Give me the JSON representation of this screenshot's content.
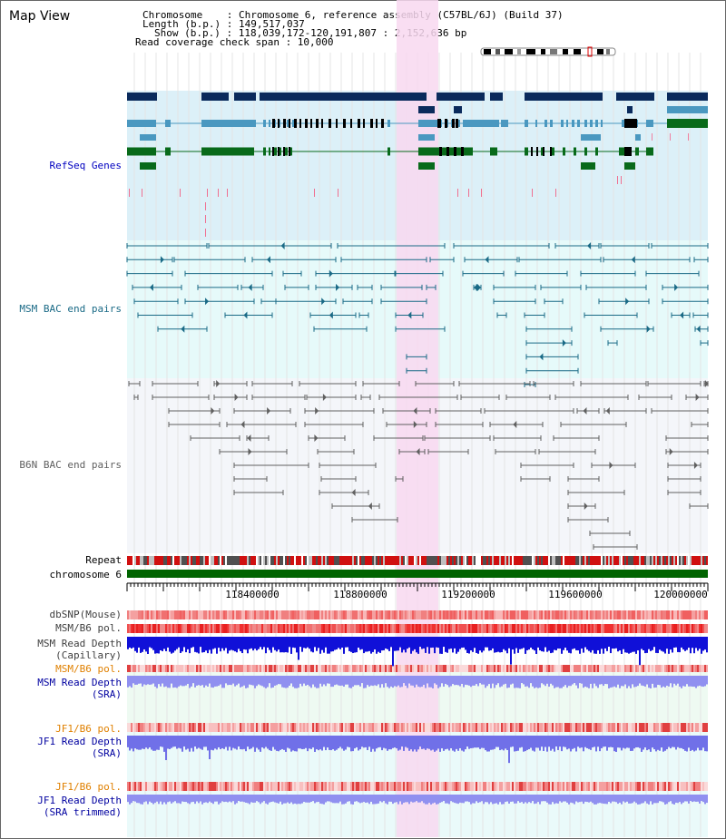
{
  "page_title": "Map View",
  "header": {
    "chromosome_line": "Chromosome    : Chromosome 6, reference assembly (C57BL/6J) (Build 37)",
    "length_line": "Length (b.p.) : 149,517,037",
    "show_line": "Show (b.p.) : 118,039,172-120,191,807 : 2,152,636 bp",
    "coverage_line": "Read coverage check span : 10,000"
  },
  "tracks": {
    "refseq": "RefSeq Genes",
    "msm_bac": "MSM BAC end pairs",
    "b6n_bac": "B6N BAC end pairs",
    "repeat": "Repeat",
    "chromosome": "chromosome 6",
    "dbsnp": "dbSNP(Mouse)",
    "msm_b6_pol_1": "MSM/B6 pol.",
    "msm_depth_cap_1": "MSM Read Depth",
    "msm_depth_cap_2": "(Capillary)",
    "msm_b6_pol_2": "MSM/B6 pol.",
    "msm_depth_sra_1": "MSM Read Depth",
    "msm_depth_sra_2": "(SRA)",
    "jf1_b6_pol_1": "JF1/B6 pol.",
    "jf1_depth_sra_1": "JF1 Read Depth",
    "jf1_depth_sra_2": "(SRA)",
    "jf1_b6_pol_2": "JF1/B6 pol.",
    "jf1_depth_trim_1": "JF1 Read Depth",
    "jf1_depth_trim_2": "(SRA trimmed)"
  },
  "axis_ticks": [
    "118400000",
    "118800000",
    "119200000",
    "119600000",
    "120000000"
  ],
  "colors": {
    "refseq_bg": "#dcf0f8",
    "msm_bg": "#e6fafa",
    "b6n_bg": "#f4f6fa",
    "highlight": "#f8d8f0",
    "refseq_dark": "#0a2a5c",
    "refseq_mid": "#4a98c0",
    "refseq_green": "#086a1a",
    "msm_line": "#1a6a86",
    "b6n_line": "#606060",
    "chrom_green": "#006400",
    "depth_blue": "#2020e0",
    "depth_light": "#8080f0",
    "label_blue": "#0000a0",
    "label_orange": "#e08000",
    "label_gray": "#404040"
  }
}
